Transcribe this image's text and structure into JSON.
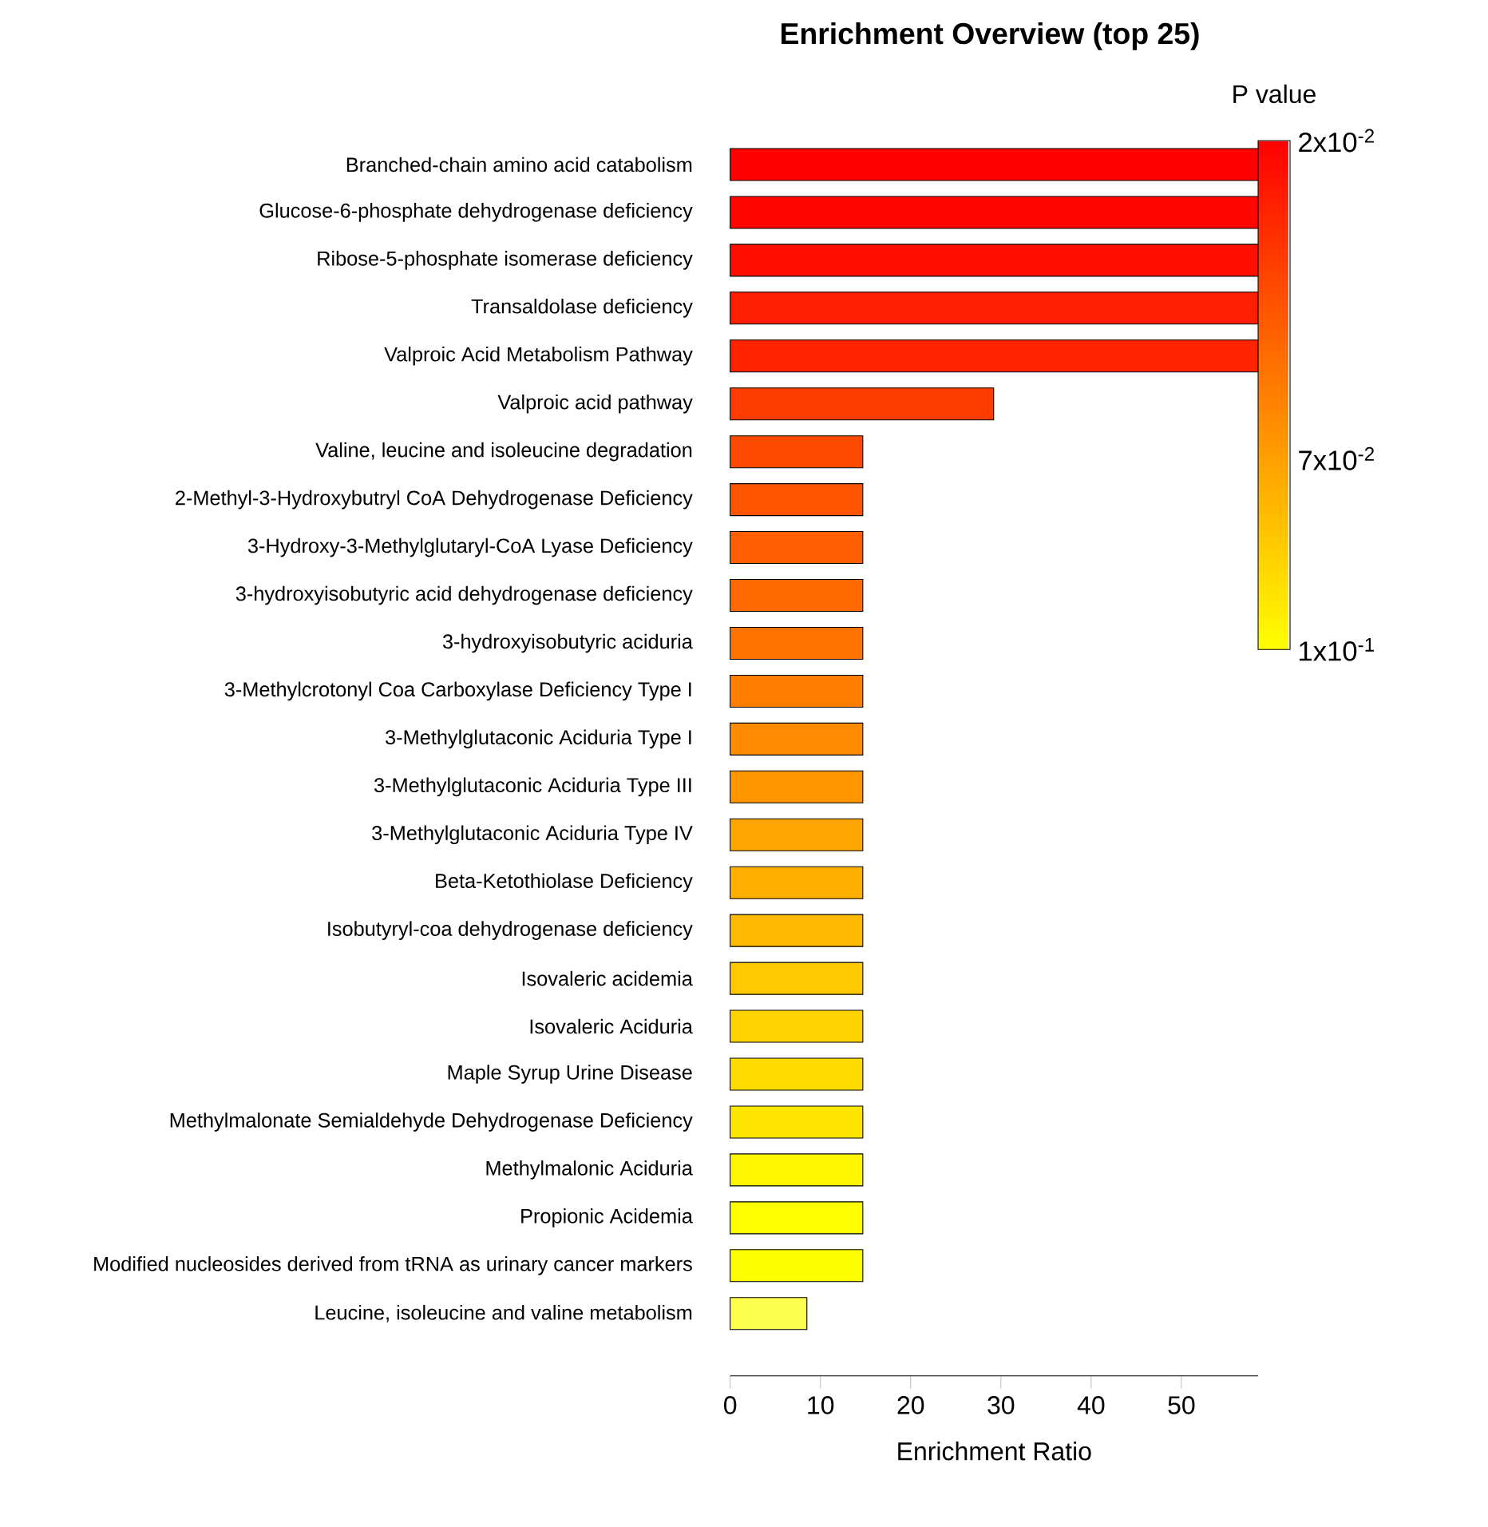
{
  "chart_data": {
    "type": "bar",
    "orientation": "horizontal",
    "title": "Enrichment Overview (top 25)",
    "xlabel": "Enrichment Ratio",
    "clabel": "P value",
    "categories": [
      "Branched-chain amino acid catabolism",
      "Glucose-6-phosphate dehydrogenase deficiency",
      "Ribose-5-phosphate isomerase deficiency",
      "Transaldolase deficiency",
      "Valproic Acid Metabolism Pathway",
      "Valproic acid pathway",
      "Valine, leucine and isoleucine degradation",
      "2-Methyl-3-Hydroxybutryl CoA Dehydrogenase Deficiency",
      "3-Hydroxy-3-Methylglutaryl-CoA Lyase Deficiency",
      "3-hydroxyisobutyric acid dehydrogenase deficiency",
      "3-hydroxyisobutyric aciduria",
      "3-Methylcrotonyl Coa Carboxylase Deficiency Type I",
      "3-Methylglutaconic Aciduria Type I",
      "3-Methylglutaconic Aciduria Type III",
      "3-Methylglutaconic Aciduria Type IV",
      "Beta-Ketothiolase Deficiency",
      "Isobutyryl-coa dehydrogenase deficiency",
      "Isovaleric acidemia",
      "Isovaleric Aciduria",
      "Maple Syrup Urine Disease",
      "Methylmalonate Semialdehyde Dehydrogenase Deficiency",
      "Methylmalonic Aciduria",
      "Propionic Acidemia",
      "Modified nucleosides derived from tRNA as urinary cancer markers",
      "Leucine, isoleucine and valine metabolism"
    ],
    "values": [
      58.5,
      58.5,
      58.5,
      58.5,
      58.5,
      29.2,
      14.7,
      14.7,
      14.7,
      14.7,
      14.7,
      14.7,
      14.7,
      14.7,
      14.7,
      14.7,
      14.7,
      14.7,
      14.7,
      14.7,
      14.7,
      14.7,
      14.7,
      14.7,
      8.5
    ],
    "colors": [
      "#ff0000",
      "#ff0500",
      "#ff0f00",
      "#ff1e00",
      "#ff2300",
      "#ff3c00",
      "#ff4b00",
      "#ff5500",
      "#ff5f00",
      "#ff6900",
      "#ff7300",
      "#ff7d00",
      "#ff8c00",
      "#ff9600",
      "#ffa500",
      "#ffaf00",
      "#ffb900",
      "#ffc800",
      "#ffd200",
      "#ffdc00",
      "#ffe600",
      "#fff500",
      "#ffff00",
      "#fcff00",
      "#ffff4d"
    ],
    "xlim": [
      0,
      58.5
    ],
    "xticks": [
      0,
      10,
      20,
      30,
      40,
      50
    ],
    "clim": [
      0.1,
      0.02
    ],
    "cticks": [
      {
        "value": 0.02,
        "label": "2x10$^{-2}$"
      },
      {
        "value": 0.07,
        "label": "7x10$^{-2}$"
      },
      {
        "value": 0.1,
        "label": "1x10$^{-1}$"
      }
    ]
  }
}
